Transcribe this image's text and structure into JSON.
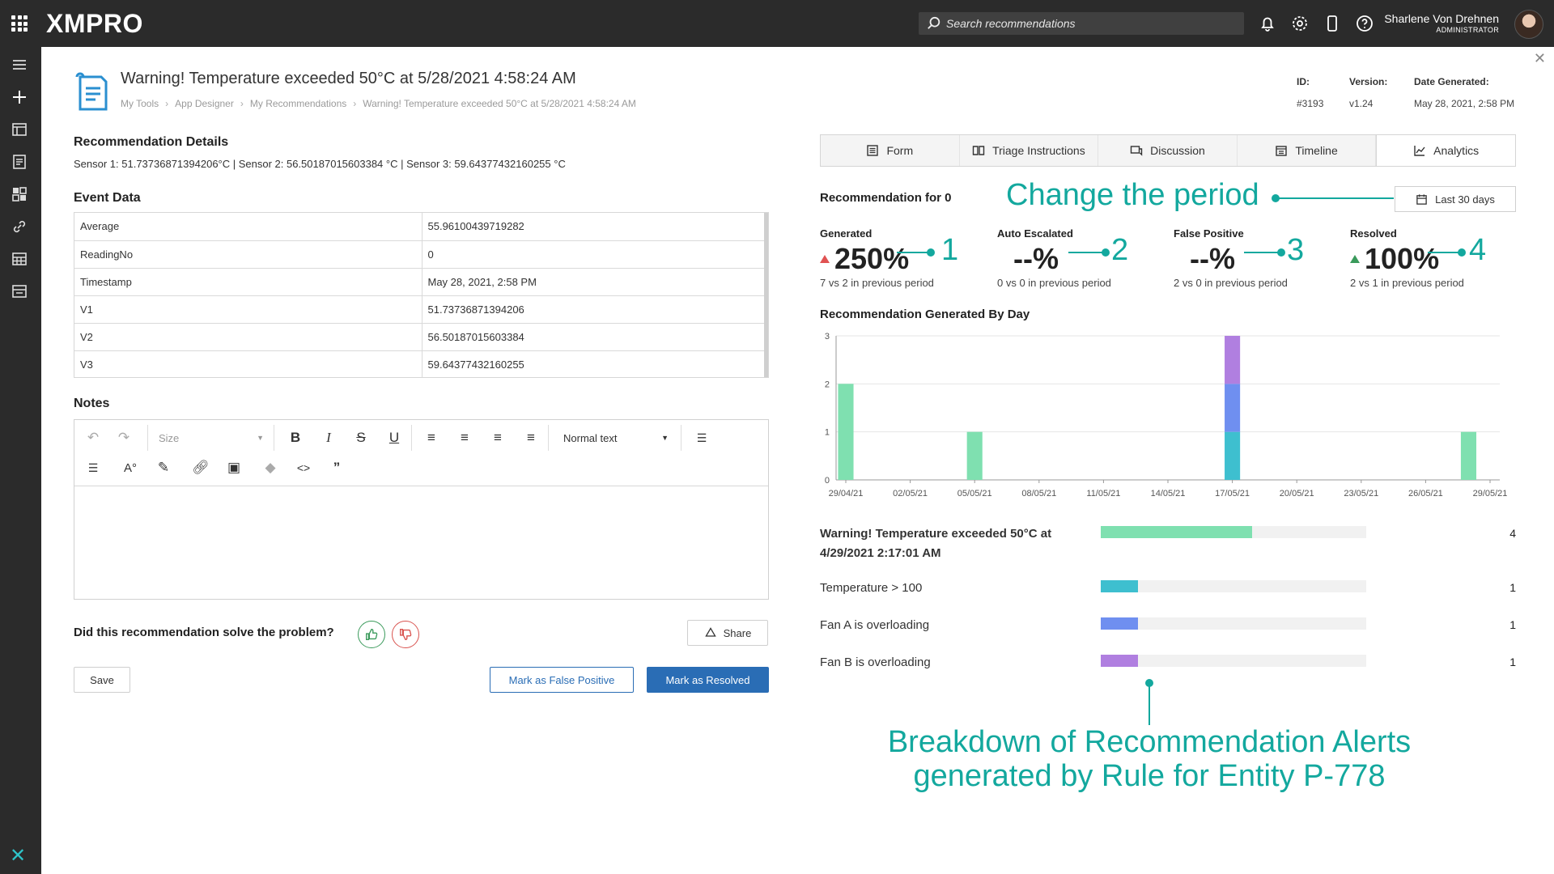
{
  "topbar": {
    "brand": "XMPRO",
    "search_placeholder": "Search recommendations",
    "user_name": "Sharlene Von Drehnen",
    "user_role": "ADMINISTRATOR"
  },
  "header": {
    "title": "Warning! Temperature exceeded 50°C at 5/28/2021 4:58:24 AM",
    "breadcrumb": [
      "My Tools",
      "App Designer",
      "My Recommendations",
      "Warning! Temperature exceeded 50°C at 5/28/2021 4:58:24 AM"
    ],
    "meta": {
      "id_label": "ID:",
      "id_value": "#3193",
      "version_label": "Version:",
      "version_value": "v1.24",
      "date_label": "Date Generated:",
      "date_value": "May 28, 2021, 2:58 PM"
    }
  },
  "details": {
    "heading": "Recommendation Details",
    "sensor_text": "Sensor 1: 51.73736871394206°C | Sensor 2: 56.50187015603384 °C | Sensor 3: 59.64377432160255 °C"
  },
  "event_data": {
    "heading": "Event Data",
    "rows": [
      {
        "key": "Average",
        "value": "55.96100439719282"
      },
      {
        "key": "ReadingNo",
        "value": "0"
      },
      {
        "key": "Timestamp",
        "value": "May 28, 2021, 2:58 PM"
      },
      {
        "key": "V1",
        "value": "51.73736871394206"
      },
      {
        "key": "V2",
        "value": "56.50187015603384"
      },
      {
        "key": "V3",
        "value": "59.64377432160255"
      }
    ]
  },
  "notes": {
    "heading": "Notes",
    "size_select": "Size",
    "style_select": "Normal text"
  },
  "feedback": {
    "question": "Did this recommendation solve the problem?",
    "share_label": "Share"
  },
  "actions": {
    "save_label": "Save",
    "false_positive_label": "Mark as False Positive",
    "resolved_label": "Mark as Resolved"
  },
  "tabs": [
    {
      "label": "Form",
      "icon": "form-icon"
    },
    {
      "label": "Triage Instructions",
      "icon": "book-icon"
    },
    {
      "label": "Discussion",
      "icon": "chat-icon"
    },
    {
      "label": "Timeline",
      "icon": "calendar-list-icon"
    },
    {
      "label": "Analytics",
      "icon": "line-chart-icon"
    }
  ],
  "analytics": {
    "rec_for": "Recommendation for 0",
    "period_label": "Last 30 days",
    "kpis": [
      {
        "label": "Generated",
        "value": "250%",
        "trend": "up-red",
        "sub": "7 vs 2 in previous period"
      },
      {
        "label": "Auto Escalated",
        "value": "--%",
        "trend": "none",
        "sub": "0 vs 0 in previous period"
      },
      {
        "label": "False Positive",
        "value": "--%",
        "trend": "none",
        "sub": "2 vs 0 in previous period"
      },
      {
        "label": "Resolved",
        "value": "100%",
        "trend": "up-green",
        "sub": "2 vs 1 in previous period"
      }
    ],
    "chart_title": "Recommendation Generated By Day",
    "breakdown": [
      {
        "label": "Warning! Temperature exceeded 50°C at 4/29/2021 2:17:01 AM",
        "count": "4",
        "fraction": 0.57,
        "color": "#7fe0b0"
      },
      {
        "label": "Temperature > 100",
        "count": "1",
        "fraction": 0.14,
        "color": "#3ebfcf"
      },
      {
        "label": "Fan A is overloading",
        "count": "1",
        "fraction": 0.14,
        "color": "#6f8ff0"
      },
      {
        "label": "Fan B is overloading",
        "count": "1",
        "fraction": 0.14,
        "color": "#b07fe0"
      }
    ]
  },
  "annotations": {
    "change_period": "Change the period",
    "n1": "1",
    "n2": "2",
    "n3": "3",
    "n4": "4",
    "breakdown_line1": "Breakdown of Recommendation Alerts",
    "breakdown_line2": "generated by Rule for Entity P-778"
  },
  "chart_data": {
    "type": "bar",
    "title": "Recommendation Generated By Day",
    "stacked": true,
    "ylim": [
      0,
      3
    ],
    "yticks": [
      0,
      1,
      2,
      3
    ],
    "x_ticks": [
      "29/04/21",
      "02/05/21",
      "05/05/21",
      "08/05/21",
      "11/05/21",
      "14/05/21",
      "17/05/21",
      "20/05/21",
      "23/05/21",
      "26/05/21",
      "29/05/21"
    ],
    "x_range": [
      "29/04/21",
      "29/05/21"
    ],
    "bars": [
      {
        "date": "29/04/21",
        "stack": [
          {
            "value": 2,
            "color": "#7fe0b0"
          }
        ]
      },
      {
        "date": "05/05/21",
        "stack": [
          {
            "value": 1,
            "color": "#7fe0b0"
          }
        ]
      },
      {
        "date": "17/05/21",
        "stack": [
          {
            "value": 1,
            "color": "#3ebfcf"
          },
          {
            "value": 1,
            "color": "#6f8ff0"
          },
          {
            "value": 1,
            "color": "#b07fe0"
          }
        ]
      },
      {
        "date": "28/05/21",
        "stack": [
          {
            "value": 1,
            "color": "#7fe0b0"
          }
        ]
      }
    ]
  }
}
